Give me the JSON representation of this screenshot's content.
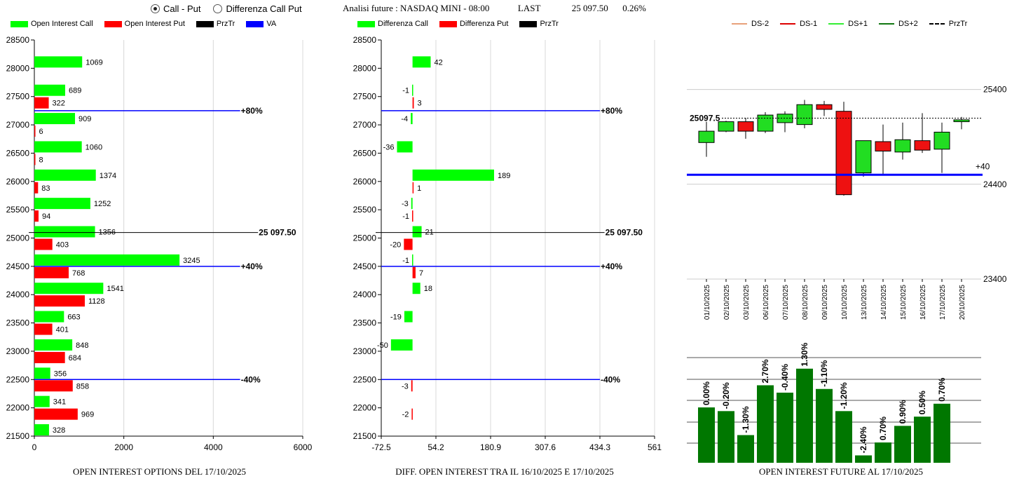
{
  "controls": {
    "radio_call_put": "Call - Put",
    "radio_diff": "Differenza Call Put",
    "selected": "call_put"
  },
  "header": {
    "title": "Analisi future : NASDAQ MINI - 08:00",
    "last_label": "LAST",
    "last_value": "25 097.50",
    "change": "0.26%"
  },
  "colors": {
    "call": "#00ff00",
    "put": "#ff0000",
    "przTr": "#000000",
    "va": "#0000ff",
    "candle_up": "#22dd22",
    "candle_down": "#ee1111",
    "oi_future": "#007700",
    "ds_minus2": "#e8a07a",
    "ds_minus1": "#dd0000",
    "ds_plus1": "#33ee33",
    "ds_plus2": "#117711"
  },
  "chart_data": [
    {
      "id": "oi_options",
      "type": "bar",
      "orientation": "horizontal",
      "title": "OPEN INTEREST OPTIONS DEL 17/10/2025",
      "legend": [
        "Open Interest Call",
        "Open Interest Put",
        "PrzTr",
        "VA"
      ],
      "categories": [
        28000,
        27500,
        27000,
        26500,
        26000,
        25500,
        25000,
        24500,
        24000,
        23500,
        23000,
        22500,
        22000,
        21500
      ],
      "series": [
        {
          "name": "Open Interest Call",
          "values": [
            1069,
            689,
            909,
            1060,
            1374,
            1252,
            1356,
            3245,
            1541,
            663,
            848,
            356,
            341,
            328
          ]
        },
        {
          "name": "Open Interest Put",
          "values": [
            null,
            322,
            6,
            8,
            83,
            94,
            403,
            768,
            1128,
            401,
            684,
            858,
            969,
            null
          ]
        }
      ],
      "xlim": [
        0,
        6000
      ],
      "xticks": [
        0,
        2000,
        4000,
        6000
      ],
      "ylim": [
        21500,
        28500
      ],
      "yticks": [
        28500,
        28000,
        27500,
        27000,
        26500,
        26000,
        25500,
        25000,
        24500,
        24000,
        23500,
        23000,
        22500,
        22000,
        21500
      ],
      "ref_lines": [
        {
          "y": 27250,
          "label": "+80%",
          "color": "blue",
          "x_end": 4600
        },
        {
          "y": 25097.5,
          "label": "25 097.50",
          "color": "black",
          "x_end": 5000
        },
        {
          "y": 24500,
          "label": "+40%",
          "color": "blue",
          "x_end": 4600
        },
        {
          "y": 22500,
          "label": "-40%",
          "color": "blue",
          "x_end": 4600
        }
      ]
    },
    {
      "id": "diff_oi",
      "type": "bar",
      "orientation": "horizontal",
      "title": "DIFF. OPEN INTEREST TRA IL 16/10/2025 E 17/10/2025",
      "legend": [
        "Differenza Call",
        "Differenza Put",
        "PrzTr"
      ],
      "categories": [
        28000,
        27500,
        27000,
        26500,
        26000,
        25500,
        25000,
        24500,
        24000,
        23500,
        23000,
        22500,
        22000,
        21500
      ],
      "series": [
        {
          "name": "Differenza Call",
          "values": [
            42,
            -1,
            -4,
            -36,
            189,
            -3,
            21,
            -1,
            18,
            -19,
            -50,
            null,
            null,
            null
          ]
        },
        {
          "name": "Differenza Put",
          "values": [
            null,
            3,
            null,
            null,
            1,
            -1,
            -20,
            7,
            null,
            null,
            null,
            -3,
            -2,
            null
          ]
        }
      ],
      "xlim": [
        -72.5,
        561
      ],
      "xticks": [
        "-72.5",
        "54.2",
        "180.9",
        "307.6",
        "434.3",
        "561"
      ],
      "ylim": [
        21500,
        28500
      ],
      "yticks": [
        28500,
        28000,
        27500,
        27000,
        26500,
        26000,
        25500,
        25000,
        24500,
        24000,
        23500,
        23000,
        22500,
        22000,
        21500
      ],
      "ref_lines": [
        {
          "y": 27250,
          "label": "+80%",
          "color": "blue",
          "x_end": 434.3
        },
        {
          "y": 25097.5,
          "label": "25 097.50",
          "color": "black",
          "x_end": 445
        },
        {
          "y": 24500,
          "label": "+40%",
          "color": "blue",
          "x_end": 434.3
        },
        {
          "y": 22500,
          "label": "-40%",
          "color": "blue",
          "x_end": 434.3
        }
      ]
    },
    {
      "id": "candles",
      "type": "candlestick",
      "legend": [
        "DS-2",
        "DS-1",
        "DS+1",
        "DS+2",
        "PrzTr"
      ],
      "dates": [
        "01/10/2025",
        "02/10/2025",
        "03/10/2025",
        "06/10/2025",
        "07/10/2025",
        "08/10/2025",
        "09/10/2025",
        "10/10/2025",
        "13/10/2025",
        "14/10/2025",
        "15/10/2025",
        "16/10/2025",
        "17/10/2025",
        "20/10/2025"
      ],
      "ohlc": [
        [
          24840,
          25060,
          24690,
          24960
        ],
        [
          24960,
          25070,
          24950,
          25060
        ],
        [
          25060,
          25100,
          24880,
          24960
        ],
        [
          24960,
          25160,
          24940,
          25130
        ],
        [
          25050,
          25170,
          24950,
          25140
        ],
        [
          25030,
          25290,
          24990,
          25240
        ],
        [
          25240,
          25280,
          25120,
          25190
        ],
        [
          25170,
          25270,
          24280,
          24290
        ],
        [
          24520,
          24860,
          24480,
          24860
        ],
        [
          24850,
          25030,
          24500,
          24750
        ],
        [
          24740,
          25050,
          24660,
          24870
        ],
        [
          24860,
          25150,
          24730,
          24760
        ],
        [
          24770,
          25050,
          24520,
          24950
        ],
        [
          25060,
          25110,
          24980,
          25080
        ]
      ],
      "ylim": [
        23400,
        25900
      ],
      "yticks": [
        25400,
        24400,
        23400
      ],
      "last_label": "25097.5",
      "last_value": 25097.5,
      "va_line": {
        "y": 24500,
        "label": "+40"
      }
    },
    {
      "id": "oi_future",
      "type": "bar",
      "title": "OPEN INTEREST FUTURE AL 17/10/2025",
      "categories": [
        "01/10/2025",
        "02/10/2025",
        "03/10/2025",
        "06/10/2025",
        "07/10/2025",
        "08/10/2025",
        "09/10/2025",
        "10/10/2025",
        "13/10/2025",
        "14/10/2025",
        "15/10/2025",
        "16/10/2025",
        "17/10/2025"
      ],
      "labels": [
        "0.00%",
        "-0.20%",
        "-1.30%",
        "2.70%",
        "-0.40%",
        "1.30%",
        "-1.10%",
        "-1.20%",
        "-2.40%",
        "0.70%",
        "0.90%",
        "0.50%",
        "0.70%"
      ],
      "values": [
        100,
        99.8,
        98.5,
        101.2,
        100.8,
        102.1,
        101.0,
        99.8,
        97.4,
        98.1,
        99.0,
        99.5,
        100.2
      ],
      "ylim": [
        97,
        102.7
      ]
    }
  ]
}
